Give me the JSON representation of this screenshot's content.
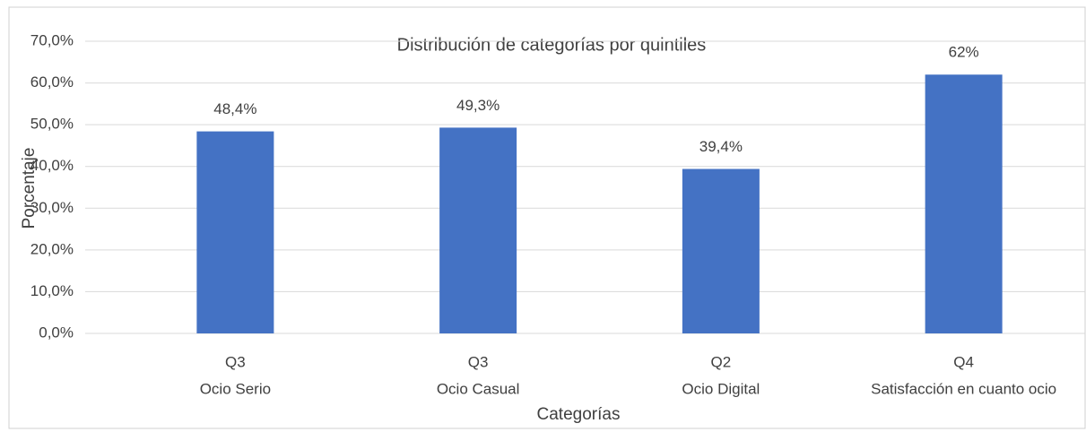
{
  "chart_data": {
    "type": "bar",
    "title": "Distribución de categorías por quintiles",
    "y_label": "Porcentaje",
    "x_label": "Categorías",
    "categories": [
      [
        "Q3",
        "Ocio Serio"
      ],
      [
        "Q3",
        "Ocio Casual"
      ],
      [
        "Q2",
        "Ocio Digital"
      ],
      [
        "Q4",
        "Satisfacción en cuanto ocio"
      ]
    ],
    "values": [
      48.4,
      49.3,
      39.4,
      62
    ],
    "value_labels": [
      "48,4%",
      "49,3%",
      "39,4%",
      "62%"
    ],
    "color": "#4472c4",
    "ylim": [
      0,
      70
    ],
    "yticks": [
      {
        "value": 0,
        "label": "0,0%"
      },
      {
        "value": 10,
        "label": "10,0%"
      },
      {
        "value": 20,
        "label": "20,0%"
      },
      {
        "value": 30,
        "label": "30,0%"
      },
      {
        "value": 40,
        "label": "40,0%"
      },
      {
        "value": 50,
        "label": "50,0%"
      },
      {
        "value": 60,
        "label": "60,0%"
      },
      {
        "value": 70,
        "label": "70,0%"
      }
    ],
    "grid": true
  }
}
